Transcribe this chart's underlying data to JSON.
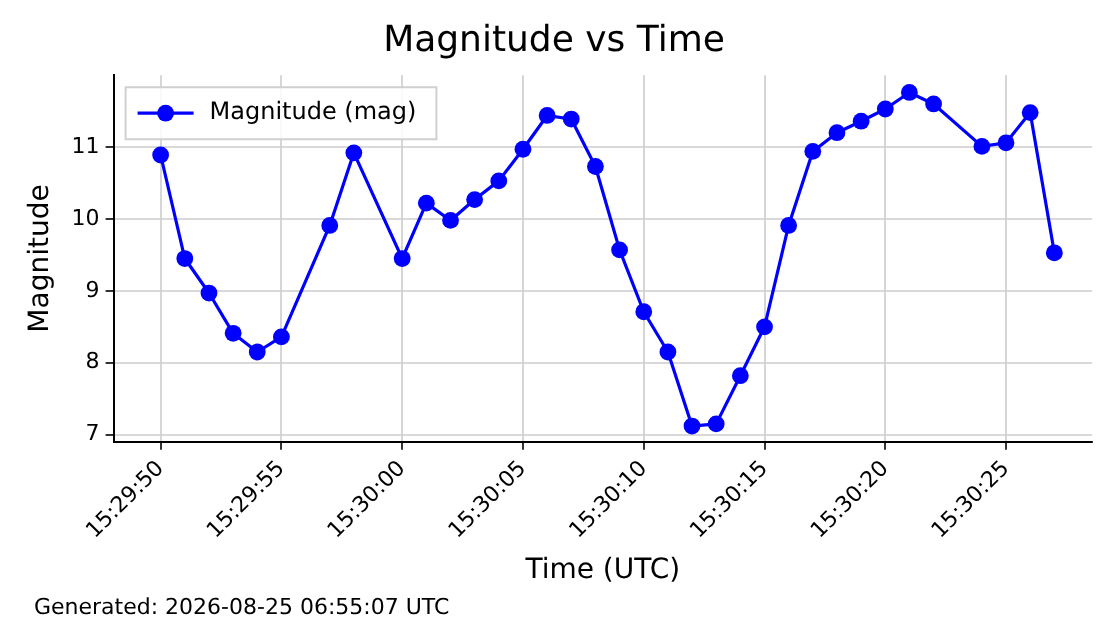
{
  "chart_data": {
    "type": "line",
    "title": "Magnitude vs Time",
    "xlabel": "Time (UTC)",
    "ylabel": "Magnitude",
    "annotations": [
      "Generated: 2026-08-25 06:55:07 UTC"
    ],
    "x": [
      15.497222,
      15.4975,
      15.497778,
      15.498056,
      15.498333,
      15.498611,
      15.499167,
      15.499444,
      15.5,
      15.500278,
      15.500556,
      15.500833,
      15.501111,
      15.501389,
      15.501667,
      15.501944,
      15.502222,
      15.5025,
      15.502778,
      15.503056,
      15.503333,
      15.503611,
      15.503889,
      15.504167,
      15.504444,
      15.504722,
      15.505,
      15.505278,
      15.505556,
      15.505833,
      15.506111,
      15.506667,
      15.506944,
      15.507222,
      15.5075
    ],
    "series": [
      {
        "name": "Magnitude (mag)",
        "color": "#0000ff",
        "values": [
          10.89,
          9.45,
          8.97,
          8.41,
          8.15,
          8.36,
          9.91,
          10.92,
          9.45,
          10.22,
          9.98,
          10.27,
          10.53,
          10.97,
          11.44,
          11.39,
          10.73,
          9.57,
          8.71,
          8.15,
          7.12,
          7.15,
          7.82,
          8.5,
          9.91,
          10.94,
          11.2,
          11.36,
          11.53,
          11.76,
          11.6,
          11.01,
          11.06,
          11.48,
          9.53
        ]
      }
    ],
    "xlim": [
      15.496681,
      15.507933
    ],
    "ylim": [
      6.9,
      12.0
    ],
    "xticks": [
      {
        "value": 15.497222,
        "label": "15:29:50"
      },
      {
        "value": 15.498611,
        "label": "15:29:55"
      },
      {
        "value": 15.5,
        "label": "15:30:00"
      },
      {
        "value": 15.501389,
        "label": "15:30:05"
      },
      {
        "value": 15.502778,
        "label": "15:30:10"
      },
      {
        "value": 15.504167,
        "label": "15:30:15"
      },
      {
        "value": 15.505556,
        "label": "15:30:20"
      },
      {
        "value": 15.506944,
        "label": "15:30:25"
      }
    ],
    "yticks": [
      7,
      8,
      9,
      10,
      11
    ],
    "grid": true,
    "legend": "top left",
    "marker": "circle",
    "line_style": "solid"
  }
}
